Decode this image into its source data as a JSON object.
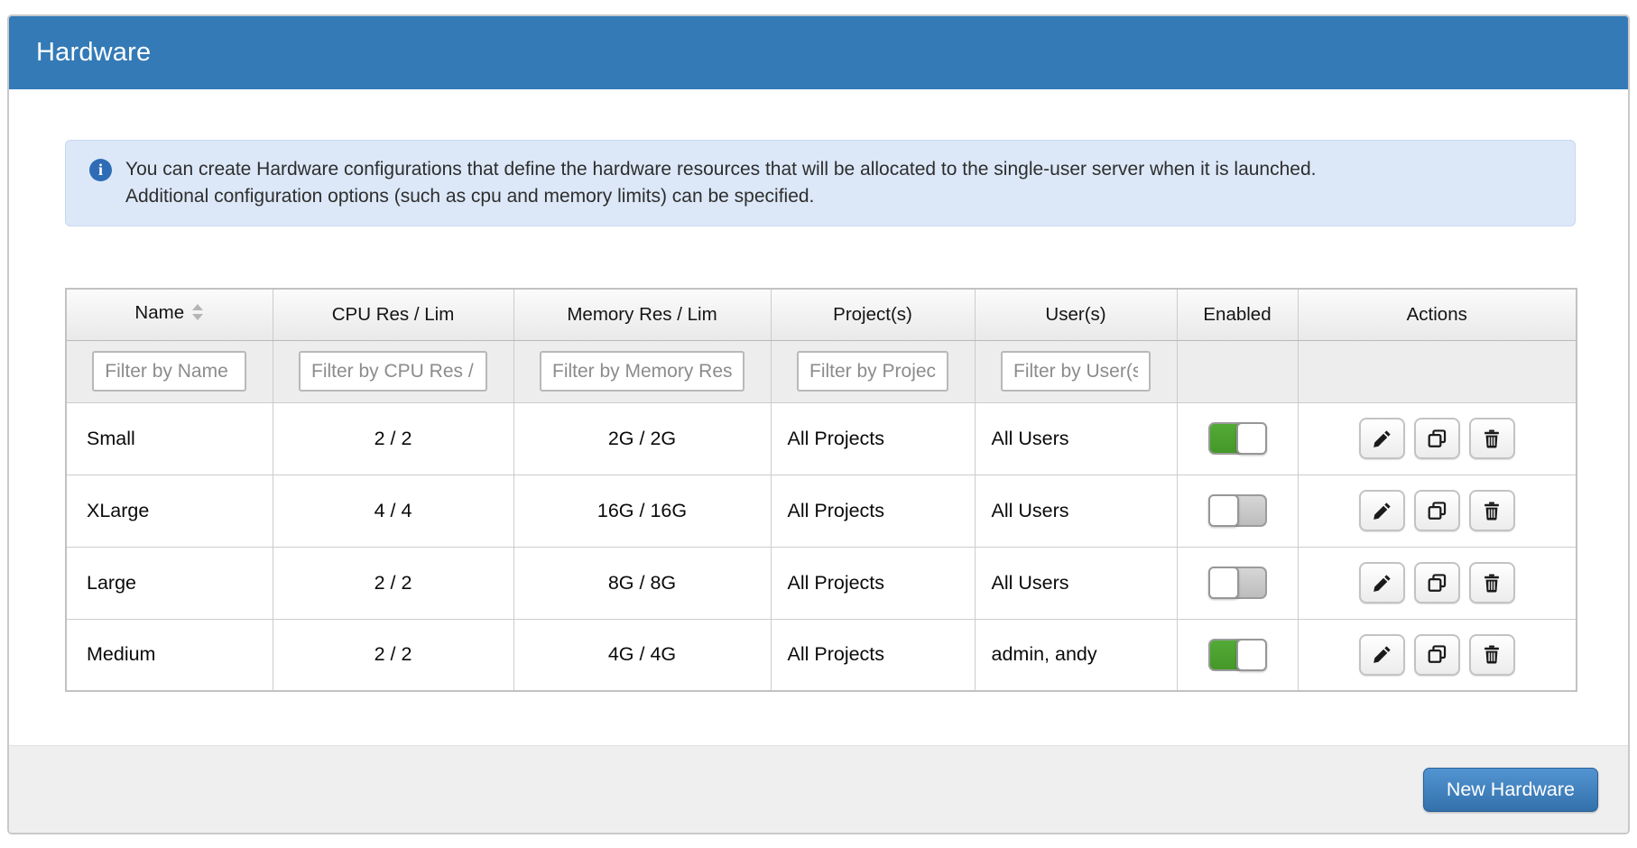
{
  "panel": {
    "title": "Hardware"
  },
  "info": {
    "icon": "info-circle",
    "text": "You can create Hardware configurations that define the hardware resources that will be allocated to the single-user server when it is launched. Additional configuration options (such as cpu and memory limits) can be specified."
  },
  "table": {
    "columns": [
      "Name",
      "CPU Res / Lim",
      "Memory Res / Lim",
      "Project(s)",
      "User(s)",
      "Enabled",
      "Actions"
    ],
    "filters": [
      "Filter by Name",
      "Filter by CPU Res / Lim",
      "Filter by Memory Res / Lim",
      "Filter by Project(s)",
      "Filter by User(s)"
    ],
    "rows": [
      {
        "name": "Small",
        "cpu": "2 / 2",
        "memory": "2G / 2G",
        "projects": "All Projects",
        "users": "All Users",
        "enabled": true
      },
      {
        "name": "XLarge",
        "cpu": "4 / 4",
        "memory": "16G / 16G",
        "projects": "All Projects",
        "users": "All Users",
        "enabled": false
      },
      {
        "name": "Large",
        "cpu": "2 / 2",
        "memory": "8G / 8G",
        "projects": "All Projects",
        "users": "All Users",
        "enabled": false
      },
      {
        "name": "Medium",
        "cpu": "2 / 2",
        "memory": "4G / 4G",
        "projects": "All Projects",
        "users": "admin, andy",
        "enabled": true
      }
    ],
    "icons": {
      "sort": "sort-arrows",
      "edit": "pencil",
      "duplicate": "copy",
      "delete": "trash"
    }
  },
  "footer": {
    "new_hardware_label": "New Hardware"
  },
  "colors": {
    "header_bg": "#337ab7",
    "info_bg": "#dce8f8",
    "toggle_on_green": "#4aa32e",
    "primary_button": "#3f7fbf"
  }
}
